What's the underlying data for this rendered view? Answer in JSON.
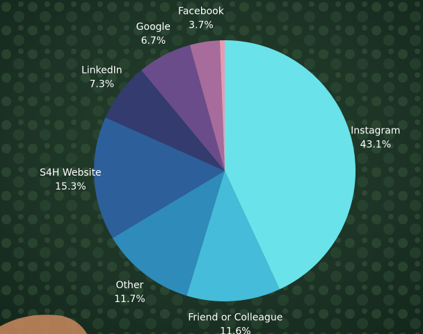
{
  "chart_data": {
    "type": "pie",
    "categories": [
      "Instagram",
      "Friend or Colleague",
      "Other",
      "S4H Website",
      "LinkedIn",
      "Google",
      "Facebook",
      null
    ],
    "values": [
      43.1,
      11.6,
      11.7,
      15.3,
      7.3,
      6.7,
      3.7,
      0.6
    ],
    "value_labels": [
      "43.1%",
      "11.6%",
      "11.7%",
      "15.3%",
      "7.3%",
      "6.7%",
      "3.7%",
      null
    ],
    "colors": [
      "#69e3e9",
      "#45bcd9",
      "#2f8bb9",
      "#2d5f9b",
      "#333b6f",
      "#6a4c8b",
      "#a76c9b",
      "#e79bb2"
    ]
  }
}
